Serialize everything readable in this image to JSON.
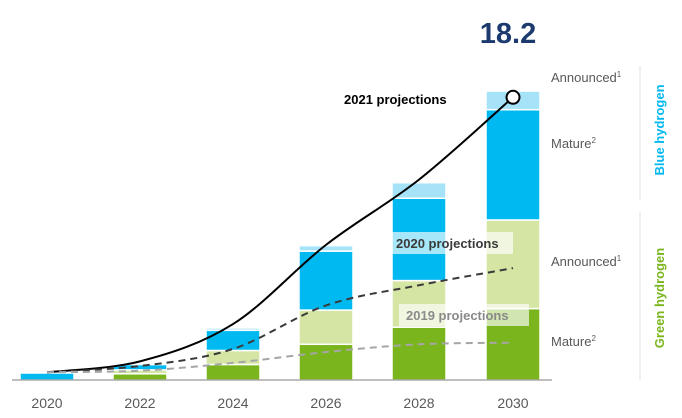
{
  "chart_data": {
    "type": "bar",
    "stacked": true,
    "categories": [
      "2020",
      "2022",
      "2024",
      "2026",
      "2028",
      "2030"
    ],
    "series": [
      {
        "name": "Mature",
        "group": "Green hydrogen",
        "color": "#7ab51d",
        "values": [
          0.0,
          0.4,
          1.0,
          2.3,
          3.4,
          4.6
        ]
      },
      {
        "name": "Announced",
        "group": "Green hydrogen",
        "color": "#d5e5a3",
        "values": [
          0.0,
          0.25,
          0.9,
          2.2,
          3.0,
          5.7
        ]
      },
      {
        "name": "Mature",
        "group": "Blue hydrogen",
        "color": "#00b9f1",
        "values": [
          0.45,
          0.35,
          1.3,
          3.8,
          5.3,
          7.1
        ]
      },
      {
        "name": "Announced",
        "group": "Blue hydrogen",
        "color": "#a6e3f9",
        "values": [
          0.0,
          0.1,
          0.15,
          0.35,
          1.0,
          1.2
        ]
      }
    ],
    "lines": [
      {
        "name": "2021 projections",
        "style": "solid",
        "color": "#000000",
        "values": [
          0.5,
          1.2,
          3.6,
          8.7,
          12.9,
          18.2
        ]
      },
      {
        "name": "2020 projections",
        "style": "dashed",
        "color": "#3a3a3a",
        "values": [
          0.5,
          0.9,
          2.0,
          4.8,
          6.1,
          7.2
        ]
      },
      {
        "name": "2019 projections",
        "style": "dashed",
        "color": "#a6a6a6",
        "values": [
          0.5,
          0.6,
          1.1,
          1.8,
          2.3,
          2.4
        ]
      }
    ],
    "annotation": {
      "text": "18.2",
      "category": "2030",
      "value": 18.2,
      "color": "#1c3a6e"
    },
    "ylim": [
      0,
      20
    ],
    "grid": false,
    "legend": "right"
  },
  "legend_labels": {
    "blue_group": "Blue hydrogen",
    "green_group": "Green hydrogen",
    "blue_announced": "Announced",
    "blue_mature": "Mature",
    "green_announced": "Announced",
    "green_mature": "Mature",
    "sup_announced": "1",
    "sup_mature": "2"
  },
  "colors": {
    "blue_group": "#00b9f1",
    "green_group": "#7ab51d",
    "text": "#595959",
    "axis": "#7f7f7f"
  }
}
